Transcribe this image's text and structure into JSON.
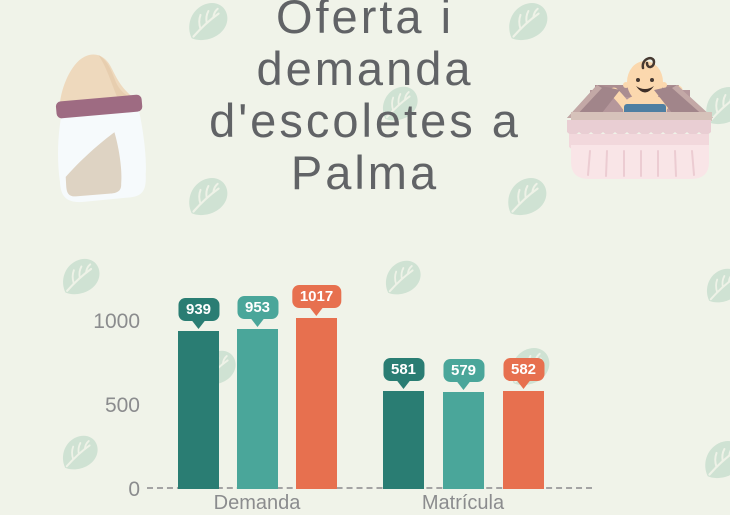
{
  "palette": {
    "background": "#f0f3e9",
    "leaf": "#cfe2d3",
    "title_color": "#616366",
    "axis_text": "#8b8c8e",
    "baseline": "#a3a3a3",
    "badge_text": "#ffffff"
  },
  "title": {
    "full": "Oferta i demanda d'escoletes a Palma",
    "lines": [
      "Oferta i",
      "demanda",
      "d'escoletes a",
      "Palma"
    ]
  },
  "decorations": {
    "illustrations": [
      "baby-bottle",
      "baby-in-crib"
    ],
    "leaf_icon": "leaf-icon"
  },
  "chart_data": {
    "type": "bar",
    "categories": [
      "Demanda",
      "Matrícula"
    ],
    "series": [
      {
        "name": "serie-1",
        "color": "#2a7d73",
        "values": [
          939,
          581
        ]
      },
      {
        "name": "serie-2",
        "color": "#4aa69a",
        "values": [
          953,
          579
        ]
      },
      {
        "name": "serie-3",
        "color": "#e7704f",
        "values": [
          1017,
          582
        ]
      }
    ],
    "yticks": [
      "1000",
      "500",
      "0"
    ],
    "ylim": [
      0,
      1200
    ],
    "grid": false,
    "value_labels": true,
    "legend": null,
    "baseline_style": "dashed",
    "note": "category labels clipped at bottom edge of image"
  }
}
